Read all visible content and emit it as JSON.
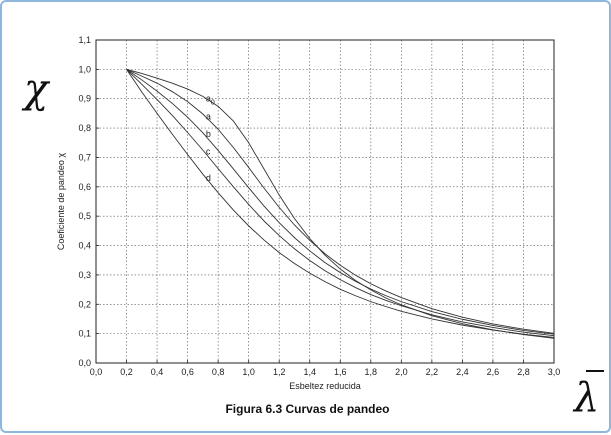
{
  "symbols": {
    "y": "χ",
    "x": "λ"
  },
  "caption": "Figura 6.3 Curvas de pandeo",
  "chart_data": {
    "type": "line",
    "title": "",
    "xlabel": "Esbeltez reducida",
    "ylabel": "Coeficiente de pandeo χ",
    "xlim": [
      0.0,
      3.0
    ],
    "ylim": [
      0.0,
      1.1
    ],
    "grid": true,
    "legend": "none",
    "x_ticks": [
      "0,0",
      "0,2",
      "0,4",
      "0,6",
      "0,8",
      "1,0",
      "1,2",
      "1,4",
      "1,6",
      "1,8",
      "2,0",
      "2,2",
      "2,4",
      "2,6",
      "2,8",
      "3,0"
    ],
    "y_ticks": [
      "0,0",
      "0,1",
      "0,2",
      "0,3",
      "0,4",
      "0,5",
      "0,6",
      "0,7",
      "0,8",
      "0,9",
      "1,0",
      "1,1"
    ],
    "x": [
      0.2,
      0.3,
      0.4,
      0.5,
      0.6,
      0.7,
      0.8,
      0.9,
      1.0,
      1.1,
      1.2,
      1.3,
      1.4,
      1.5,
      1.6,
      1.7,
      1.8,
      1.9,
      2.0,
      2.2,
      2.4,
      2.6,
      2.8,
      3.0
    ],
    "series": [
      {
        "name": "a0",
        "values": [
          1.0,
          0.986,
          0.97,
          0.953,
          0.933,
          0.908,
          0.874,
          0.824,
          0.75,
          0.661,
          0.572,
          0.492,
          0.424,
          0.367,
          0.32,
          0.281,
          0.249,
          0.221,
          0.198,
          0.161,
          0.134,
          0.113,
          0.097,
          0.084
        ]
      },
      {
        "name": "a",
        "values": [
          1.0,
          0.977,
          0.953,
          0.924,
          0.89,
          0.848,
          0.796,
          0.734,
          0.666,
          0.596,
          0.53,
          0.47,
          0.418,
          0.372,
          0.333,
          0.299,
          0.27,
          0.245,
          0.223,
          0.185,
          0.156,
          0.133,
          0.115,
          0.101
        ]
      },
      {
        "name": "b",
        "values": [
          1.0,
          0.964,
          0.926,
          0.884,
          0.837,
          0.784,
          0.724,
          0.661,
          0.597,
          0.535,
          0.478,
          0.427,
          0.382,
          0.342,
          0.308,
          0.278,
          0.252,
          0.229,
          0.209,
          0.175,
          0.149,
          0.128,
          0.111,
          0.098
        ]
      },
      {
        "name": "c",
        "values": [
          1.0,
          0.949,
          0.897,
          0.843,
          0.785,
          0.725,
          0.662,
          0.6,
          0.54,
          0.484,
          0.434,
          0.389,
          0.349,
          0.314,
          0.284,
          0.257,
          0.233,
          0.213,
          0.195,
          0.164,
          0.14,
          0.121,
          0.105,
          0.093
        ]
      },
      {
        "name": "d",
        "values": [
          1.0,
          0.923,
          0.85,
          0.779,
          0.71,
          0.643,
          0.58,
          0.521,
          0.467,
          0.419,
          0.376,
          0.339,
          0.306,
          0.277,
          0.251,
          0.229,
          0.209,
          0.192,
          0.176,
          0.15,
          0.129,
          0.112,
          0.098,
          0.087
        ]
      }
    ],
    "curve_labels": [
      {
        "text": "a",
        "sub": "0",
        "x": 0.72,
        "y": 0.9
      },
      {
        "text": "a",
        "sub": "",
        "x": 0.72,
        "y": 0.84
      },
      {
        "text": "b",
        "sub": "",
        "x": 0.72,
        "y": 0.78
      },
      {
        "text": "c",
        "sub": "",
        "x": 0.72,
        "y": 0.72
      },
      {
        "text": "d",
        "sub": "",
        "x": 0.72,
        "y": 0.63
      }
    ]
  }
}
